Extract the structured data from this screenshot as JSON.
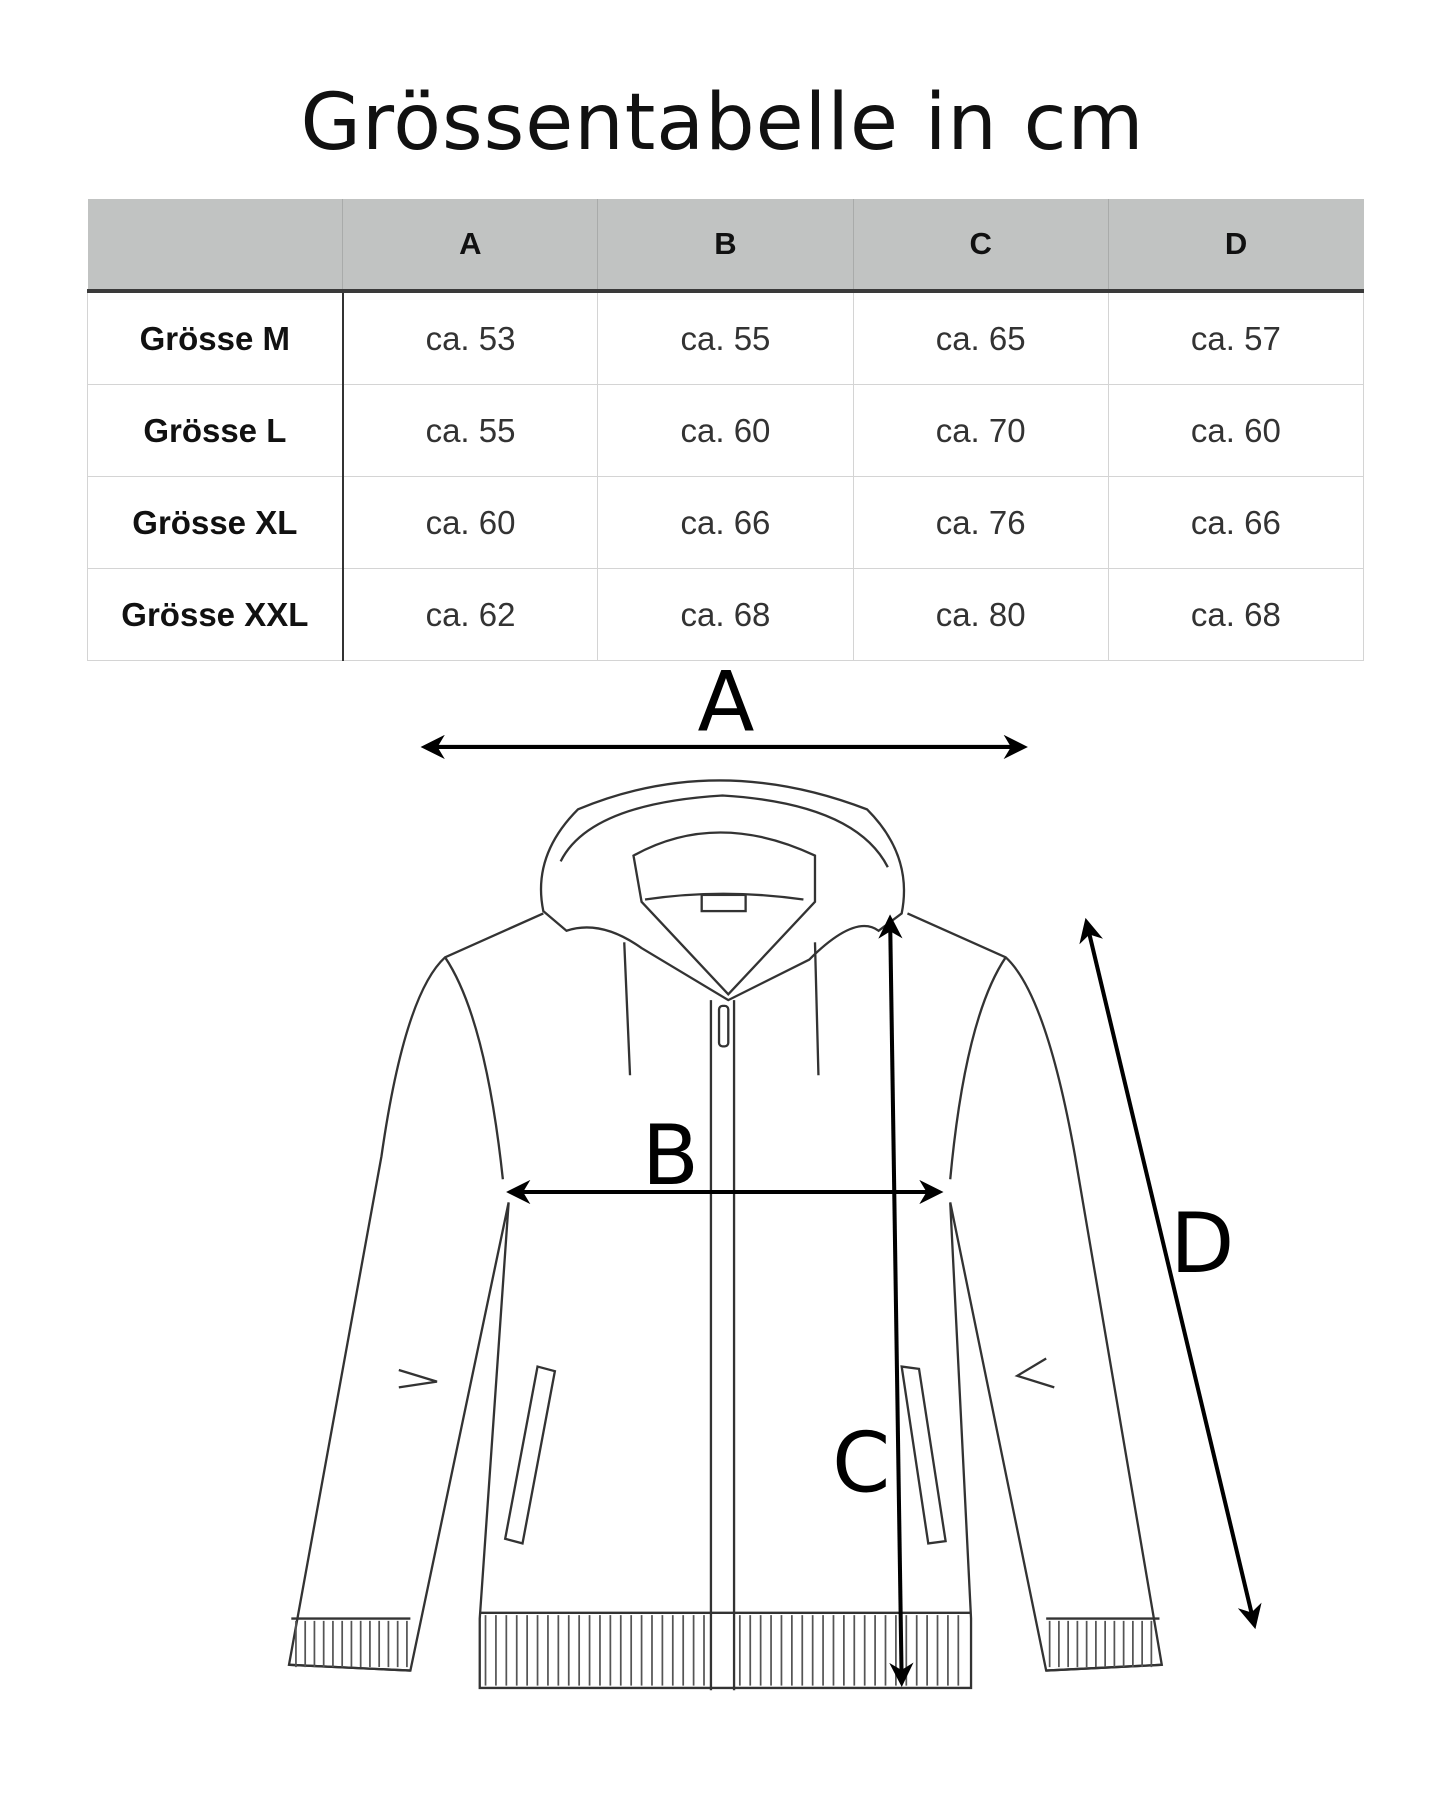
{
  "title": "Grössentabelle in cm",
  "table": {
    "columns": [
      "",
      "A",
      "B",
      "C",
      "D"
    ],
    "rows": [
      {
        "size": "Grösse M",
        "values": [
          "ca. 53",
          "ca. 55",
          "ca. 65",
          "ca. 57"
        ]
      },
      {
        "size": "Grösse L",
        "values": [
          "ca. 55",
          "ca. 60",
          "ca. 70",
          "ca. 60"
        ]
      },
      {
        "size": "Grösse XL",
        "values": [
          "ca. 60",
          "ca. 66",
          "ca. 76",
          "ca. 66"
        ]
      },
      {
        "size": "Grösse XXL",
        "values": [
          "ca. 62",
          "ca. 68",
          "ca. 80",
          "ca. 68"
        ]
      }
    ]
  },
  "diagram": {
    "labels": {
      "a": "A",
      "b": "B",
      "c": "C",
      "d": "D"
    }
  }
}
